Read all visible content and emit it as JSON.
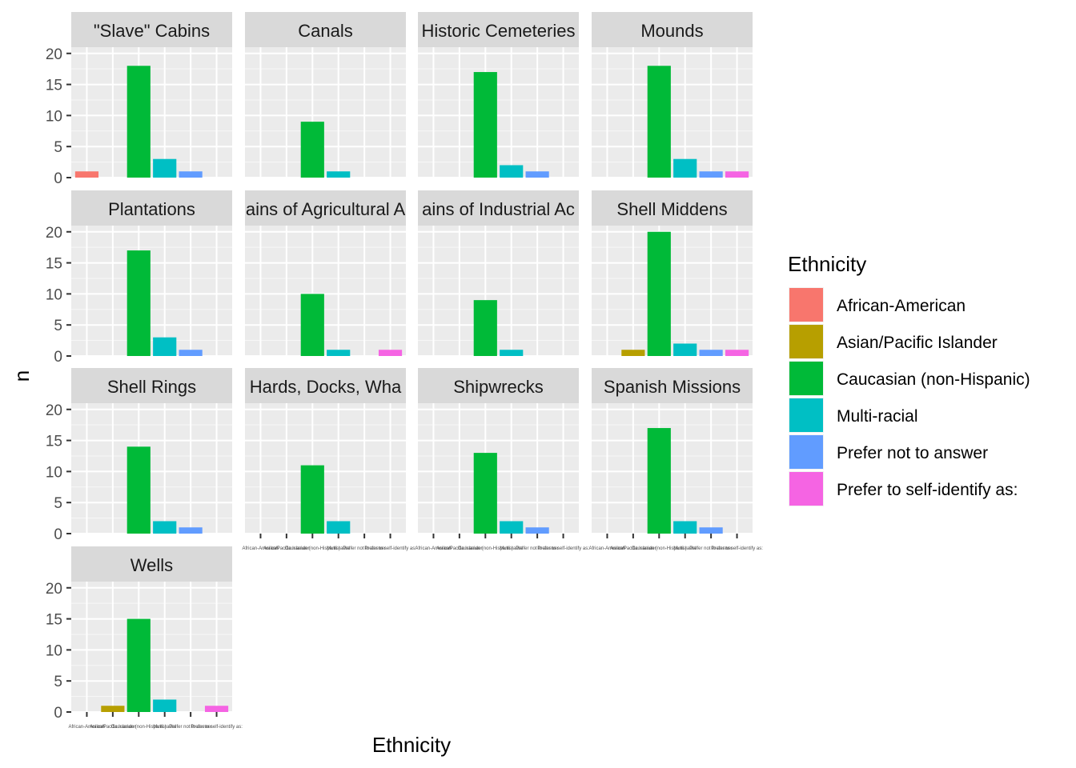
{
  "chart_data": {
    "type": "bar",
    "facet_layout": "4 columns, 4 rows",
    "xlabel": "Ethnicity",
    "ylabel": "n",
    "ylim": [
      0,
      21
    ],
    "yticks": [
      0,
      5,
      10,
      15,
      20
    ],
    "grid": true,
    "categories": [
      "African-American",
      "Asian/Pacific Islander",
      "Caucasian (non-Hispanic)",
      "Multi-racial",
      "Prefer not to answer",
      "Prefer to self-identify as:"
    ],
    "colors": [
      "#F8766D",
      "#B79F00",
      "#00BA38",
      "#00BFC4",
      "#619CFF",
      "#F564E3"
    ],
    "panels": [
      {
        "title": "\"Slave\" Cabins",
        "values": [
          1,
          0,
          18,
          3,
          1,
          0
        ]
      },
      {
        "title": "Canals",
        "values": [
          0,
          0,
          9,
          1,
          0,
          0
        ]
      },
      {
        "title": "Historic Cemeteries",
        "values": [
          0,
          0,
          17,
          2,
          1,
          0
        ]
      },
      {
        "title": "Mounds",
        "values": [
          0,
          0,
          18,
          3,
          1,
          1
        ]
      },
      {
        "title": "Plantations",
        "values": [
          0,
          0,
          17,
          3,
          1,
          0
        ]
      },
      {
        "title": "ains of Agricultural A",
        "values": [
          0,
          0,
          10,
          1,
          0,
          1
        ]
      },
      {
        "title": "ains of Industrial Ac",
        "values": [
          0,
          0,
          9,
          1,
          0,
          0
        ]
      },
      {
        "title": "Shell Middens",
        "values": [
          0,
          1,
          20,
          2,
          1,
          1
        ]
      },
      {
        "title": "Shell Rings",
        "values": [
          0,
          0,
          14,
          2,
          1,
          0
        ]
      },
      {
        "title": "Hards, Docks, Wha",
        "values": [
          0,
          0,
          11,
          2,
          0,
          0
        ]
      },
      {
        "title": "Shipwrecks",
        "values": [
          0,
          0,
          13,
          2,
          1,
          0
        ]
      },
      {
        "title": "Spanish Missions",
        "values": [
          0,
          0,
          17,
          2,
          1,
          0
        ]
      },
      {
        "title": "Wells",
        "values": [
          0,
          1,
          15,
          2,
          0,
          1
        ]
      }
    ],
    "legend": {
      "title": "Ethnicity",
      "position": "right",
      "entries": [
        "African-American",
        "Asian/Pacific Islander",
        "Caucasian (non-Hispanic)",
        "Multi-racial",
        "Prefer not to answer",
        "Prefer to self-identify as:"
      ]
    }
  }
}
